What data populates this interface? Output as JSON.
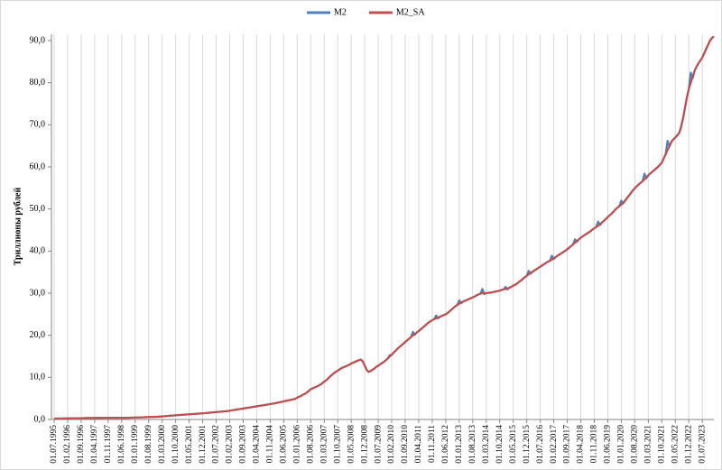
{
  "chart_data": {
    "type": "line",
    "y_label": "Триллионы рублей",
    "categories": [
      "01.07.1995",
      null,
      null,
      null,
      null,
      null,
      null,
      "01.02.1996",
      null,
      null,
      null,
      null,
      null,
      null,
      "01.09.1996",
      null,
      null,
      null,
      null,
      null,
      null,
      "01.04.1997",
      null,
      null,
      null,
      null,
      null,
      null,
      "01.11.1997",
      null,
      null,
      null,
      null,
      null,
      null,
      "01.06.1998",
      null,
      null,
      null,
      null,
      null,
      null,
      "01.01.1999",
      null,
      null,
      null,
      null,
      null,
      null,
      "01.08.1999",
      null,
      null,
      null,
      null,
      null,
      null,
      "01.03.2000",
      null,
      null,
      null,
      null,
      null,
      null,
      "01.10.2000",
      null,
      null,
      null,
      null,
      null,
      null,
      "01.05.2001",
      null,
      null,
      null,
      null,
      null,
      null,
      "01.12.2001",
      null,
      null,
      null,
      null,
      null,
      null,
      "01.07.2002",
      null,
      null,
      null,
      null,
      null,
      null,
      "01.02.2003",
      null,
      null,
      null,
      null,
      null,
      null,
      "01.09.2003",
      null,
      null,
      null,
      null,
      null,
      null,
      "01.04.2004",
      null,
      null,
      null,
      null,
      null,
      null,
      "01.11.2004",
      null,
      null,
      null,
      null,
      null,
      null,
      "01.06.2005",
      null,
      null,
      null,
      null,
      null,
      null,
      "01.01.2006",
      null,
      null,
      null,
      null,
      null,
      null,
      "01.08.2006",
      null,
      null,
      null,
      null,
      null,
      null,
      "01.03.2007",
      null,
      null,
      null,
      null,
      null,
      null,
      "01.10.2007",
      null,
      null,
      null,
      null,
      null,
      null,
      "01.05.2008",
      null,
      null,
      null,
      null,
      null,
      null,
      "01.12.2008",
      null,
      null,
      null,
      null,
      null,
      null,
      "01.07.2009",
      null,
      null,
      null,
      null,
      null,
      null,
      "01.02.2010",
      null,
      null,
      null,
      null,
      null,
      null,
      "01.09.2010",
      null,
      null,
      null,
      null,
      null,
      null,
      "01.04.2011",
      null,
      null,
      null,
      null,
      null,
      null,
      "01.11.2011",
      null,
      null,
      null,
      null,
      null,
      null,
      "01.06.2012",
      null,
      null,
      null,
      null,
      null,
      null,
      "01.01.2013",
      null,
      null,
      null,
      null,
      null,
      null,
      "01.08.2013",
      null,
      null,
      null,
      null,
      null,
      null,
      "01.03.2014",
      null,
      null,
      null,
      null,
      null,
      null,
      "01.10.2014",
      null,
      null,
      null,
      null,
      null,
      null,
      "01.05.2015",
      null,
      null,
      null,
      null,
      null,
      null,
      "01.12.2015",
      null,
      null,
      null,
      null,
      null,
      null,
      "01.07.2016",
      null,
      null,
      null,
      null,
      null,
      null,
      "01.02.2017",
      null,
      null,
      null,
      null,
      null,
      null,
      "01.09.2017",
      null,
      null,
      null,
      null,
      null,
      null,
      "01.04.2018",
      null,
      null,
      null,
      null,
      null,
      null,
      "01.11.2018",
      null,
      null,
      null,
      null,
      null,
      null,
      "01.06.2019",
      null,
      null,
      null,
      null,
      null,
      null,
      "01.01.2020",
      null,
      null,
      null,
      null,
      null,
      null,
      "01.08.2020",
      null,
      null,
      null,
      null,
      null,
      null,
      "01.03.2021",
      null,
      null,
      null,
      null,
      null,
      null,
      "01.10.2021",
      null,
      null,
      null,
      null,
      null,
      null,
      "01.05.2022",
      null,
      null,
      null,
      null,
      null,
      null,
      "01.12.2022",
      null,
      null,
      null,
      null,
      null,
      null,
      "01.07.2023",
      null,
      null,
      null,
      null,
      null,
      null
    ],
    "series": [
      {
        "name": "M2",
        "color": "#4f81bd",
        "values": [
          0.2,
          0.21,
          0.21,
          0.22,
          0.23,
          0.24,
          0.25,
          0.26,
          0.27,
          0.27,
          0.28,
          0.29,
          0.3,
          0.31,
          0.31,
          0.32,
          0.33,
          0.34,
          0.35,
          0.35,
          0.36,
          0.36,
          0.37,
          0.37,
          0.38,
          0.38,
          0.39,
          0.39,
          0.4,
          0.4,
          0.4,
          0.4,
          0.4,
          0.41,
          0.41,
          0.41,
          0.41,
          0.4,
          0.41,
          0.42,
          0.43,
          0.44,
          0.45,
          0.47,
          0.49,
          0.5,
          0.52,
          0.54,
          0.56,
          0.57,
          0.59,
          0.61,
          0.62,
          0.64,
          0.65,
          0.69,
          0.72,
          0.76,
          0.8,
          0.84,
          0.88,
          0.91,
          0.95,
          0.99,
          1.03,
          1.06,
          1.1,
          1.13,
          1.17,
          1.2,
          1.23,
          1.27,
          1.3,
          1.33,
          1.37,
          1.4,
          1.43,
          1.47,
          1.5,
          1.54,
          1.58,
          1.63,
          1.67,
          1.71,
          1.75,
          1.79,
          1.83,
          1.88,
          1.92,
          1.96,
          2.0,
          2.08,
          2.15,
          2.23,
          2.3,
          2.38,
          2.45,
          2.53,
          2.6,
          2.68,
          2.75,
          2.83,
          2.9,
          2.98,
          3.05,
          3.13,
          3.2,
          3.28,
          3.35,
          3.43,
          3.5,
          3.58,
          3.65,
          3.73,
          3.8,
          3.9,
          4.0,
          4.1,
          4.2,
          4.3,
          4.4,
          4.5,
          4.6,
          4.7,
          4.8,
          4.9,
          5.2,
          5.4,
          5.6,
          5.9,
          6.1,
          6.4,
          6.8,
          7.2,
          7.4,
          7.6,
          7.8,
          8.0,
          8.3,
          8.6,
          9.0,
          9.3,
          9.7,
          10.2,
          10.6,
          11.0,
          11.3,
          11.6,
          11.9,
          12.2,
          12.4,
          12.6,
          12.8,
          13.0,
          13.3,
          13.5,
          13.7,
          13.9,
          14.1,
          14.2,
          13.8,
          12.8,
          11.8,
          11.3,
          11.5,
          11.8,
          12.1,
          12.5,
          12.8,
          13.1,
          13.4,
          13.7,
          14.1,
          14.5,
          15.3,
          15.3,
          15.9,
          16.3,
          16.8,
          17.2,
          17.6,
          18.0,
          18.4,
          18.8,
          19.2,
          19.6,
          20.8,
          20.1,
          20.7,
          21.0,
          21.4,
          21.8,
          22.2,
          22.6,
          23.0,
          23.3,
          23.6,
          23.8,
          24.7,
          24.0,
          24.4,
          24.6,
          24.8,
          25.0,
          25.3,
          25.7,
          26.1,
          26.5,
          26.9,
          27.2,
          28.3,
          27.6,
          28.0,
          28.2,
          28.4,
          28.6,
          28.8,
          29.0,
          29.2,
          29.5,
          29.7,
          29.9,
          31.0,
          29.8,
          30.0,
          30.1,
          30.1,
          30.2,
          30.3,
          30.4,
          30.5,
          30.6,
          30.8,
          30.9,
          31.5,
          30.9,
          31.3,
          31.5,
          31.8,
          32.0,
          32.3,
          32.7,
          33.0,
          33.4,
          33.8,
          34.1,
          35.3,
          34.6,
          35.1,
          35.4,
          35.7,
          36.0,
          36.3,
          36.6,
          36.9,
          37.2,
          37.5,
          37.7,
          38.9,
          38.1,
          38.6,
          38.9,
          39.2,
          39.5,
          39.8,
          40.1,
          40.4,
          40.8,
          41.2,
          41.6,
          42.8,
          42.2,
          42.8,
          43.2,
          43.5,
          43.8,
          44.1,
          44.4,
          44.7,
          45.1,
          45.4,
          45.7,
          47.0,
          46.2,
          46.8,
          47.2,
          47.6,
          48.1,
          48.5,
          48.9,
          49.4,
          49.9,
          50.3,
          50.7,
          52.0,
          51.3,
          52.0,
          52.6,
          53.2,
          53.8,
          54.4,
          54.9,
          55.4,
          55.8,
          56.2,
          56.6,
          58.4,
          57.3,
          58.0,
          58.4,
          58.8,
          59.2,
          59.6,
          60.0,
          60.5,
          61.0,
          62.0,
          63.0,
          66.2,
          64.8,
          66.0,
          66.5,
          67.0,
          67.5,
          68.0,
          69.5,
          71.5,
          74.0,
          76.5,
          78.5,
          82.4,
          81.0,
          82.8,
          83.8,
          84.6,
          85.3,
          86.0,
          87.0,
          88.0,
          89.0,
          90.0,
          90.6,
          91.0
        ]
      },
      {
        "name": "M2_SA",
        "color": "#c0504d",
        "values": [
          0.2,
          0.21,
          0.21,
          0.22,
          0.23,
          0.24,
          0.25,
          0.26,
          0.27,
          0.27,
          0.28,
          0.29,
          0.3,
          0.31,
          0.31,
          0.32,
          0.33,
          0.34,
          0.35,
          0.35,
          0.36,
          0.36,
          0.37,
          0.37,
          0.38,
          0.38,
          0.39,
          0.39,
          0.4,
          0.4,
          0.4,
          0.4,
          0.4,
          0.41,
          0.41,
          0.41,
          0.41,
          0.4,
          0.41,
          0.42,
          0.43,
          0.44,
          0.45,
          0.47,
          0.49,
          0.5,
          0.52,
          0.54,
          0.56,
          0.57,
          0.59,
          0.61,
          0.62,
          0.64,
          0.65,
          0.69,
          0.72,
          0.76,
          0.8,
          0.84,
          0.88,
          0.91,
          0.95,
          0.99,
          1.03,
          1.06,
          1.1,
          1.13,
          1.17,
          1.2,
          1.23,
          1.27,
          1.3,
          1.33,
          1.37,
          1.4,
          1.43,
          1.47,
          1.5,
          1.54,
          1.58,
          1.63,
          1.67,
          1.71,
          1.75,
          1.79,
          1.83,
          1.88,
          1.92,
          1.96,
          2.0,
          2.08,
          2.15,
          2.23,
          2.3,
          2.38,
          2.45,
          2.53,
          2.6,
          2.68,
          2.75,
          2.83,
          2.9,
          2.98,
          3.05,
          3.13,
          3.2,
          3.28,
          3.35,
          3.43,
          3.5,
          3.58,
          3.65,
          3.73,
          3.8,
          3.9,
          4.0,
          4.1,
          4.2,
          4.3,
          4.4,
          4.5,
          4.6,
          4.7,
          4.8,
          4.9,
          5.2,
          5.4,
          5.6,
          5.9,
          6.1,
          6.4,
          6.8,
          7.2,
          7.4,
          7.6,
          7.8,
          8.0,
          8.3,
          8.6,
          9.0,
          9.3,
          9.7,
          10.2,
          10.6,
          11.0,
          11.3,
          11.6,
          11.9,
          12.2,
          12.4,
          12.6,
          12.8,
          13.0,
          13.3,
          13.5,
          13.7,
          13.9,
          14.1,
          14.2,
          13.8,
          12.8,
          11.8,
          11.3,
          11.5,
          11.8,
          12.1,
          12.5,
          12.8,
          13.1,
          13.4,
          13.7,
          14.1,
          14.5,
          15.0,
          15.4,
          15.9,
          16.3,
          16.8,
          17.2,
          17.6,
          18.0,
          18.4,
          18.8,
          19.2,
          19.6,
          20.0,
          20.3,
          20.7,
          21.0,
          21.4,
          21.8,
          22.2,
          22.6,
          23.0,
          23.3,
          23.6,
          23.8,
          24.0,
          24.2,
          24.4,
          24.6,
          24.8,
          25.0,
          25.3,
          25.7,
          26.1,
          26.5,
          26.9,
          27.2,
          27.5,
          27.8,
          28.0,
          28.2,
          28.4,
          28.6,
          28.8,
          29.0,
          29.2,
          29.5,
          29.7,
          29.9,
          30.0,
          30.0,
          30.0,
          30.1,
          30.1,
          30.2,
          30.3,
          30.4,
          30.5,
          30.6,
          30.8,
          30.9,
          31.0,
          31.1,
          31.3,
          31.5,
          31.8,
          32.0,
          32.3,
          32.7,
          33.0,
          33.4,
          33.8,
          34.1,
          34.5,
          34.8,
          35.1,
          35.4,
          35.7,
          36.0,
          36.3,
          36.6,
          36.9,
          37.2,
          37.5,
          37.7,
          38.0,
          38.3,
          38.6,
          38.9,
          39.2,
          39.5,
          39.8,
          40.1,
          40.4,
          40.8,
          41.2,
          41.6,
          42.0,
          42.4,
          42.8,
          43.2,
          43.5,
          43.8,
          44.1,
          44.4,
          44.7,
          45.1,
          45.4,
          45.7,
          46.0,
          46.4,
          46.8,
          47.2,
          47.6,
          48.1,
          48.5,
          48.9,
          49.4,
          49.9,
          50.3,
          50.7,
          51.0,
          51.5,
          52.0,
          52.6,
          53.2,
          53.8,
          54.4,
          54.9,
          55.4,
          55.8,
          56.2,
          56.6,
          57.0,
          57.5,
          58.0,
          58.4,
          58.8,
          59.2,
          59.6,
          60.0,
          60.5,
          61.0,
          62.0,
          63.0,
          64.0,
          65.0,
          66.0,
          66.5,
          67.0,
          67.5,
          68.0,
          69.5,
          71.5,
          74.0,
          76.5,
          78.5,
          80.0,
          81.5,
          82.8,
          83.8,
          84.6,
          85.3,
          86.0,
          87.0,
          88.0,
          89.0,
          90.0,
          90.6,
          91.0
        ]
      }
    ],
    "ylim": [
      0,
      91.5
    ],
    "yticks": [
      {
        "value": 0,
        "label": "0,0"
      },
      {
        "value": 10,
        "label": "10,0"
      },
      {
        "value": 20,
        "label": "20,0"
      },
      {
        "value": 30,
        "label": "30,0"
      },
      {
        "value": 40,
        "label": "40,0"
      },
      {
        "value": 50,
        "label": "50,0"
      },
      {
        "value": 60,
        "label": "60,0"
      },
      {
        "value": 70,
        "label": "70,0"
      },
      {
        "value": 80,
        "label": "80,0"
      },
      {
        "value": 90,
        "label": "90,0"
      }
    ],
    "grid": "x",
    "legend": "top"
  }
}
